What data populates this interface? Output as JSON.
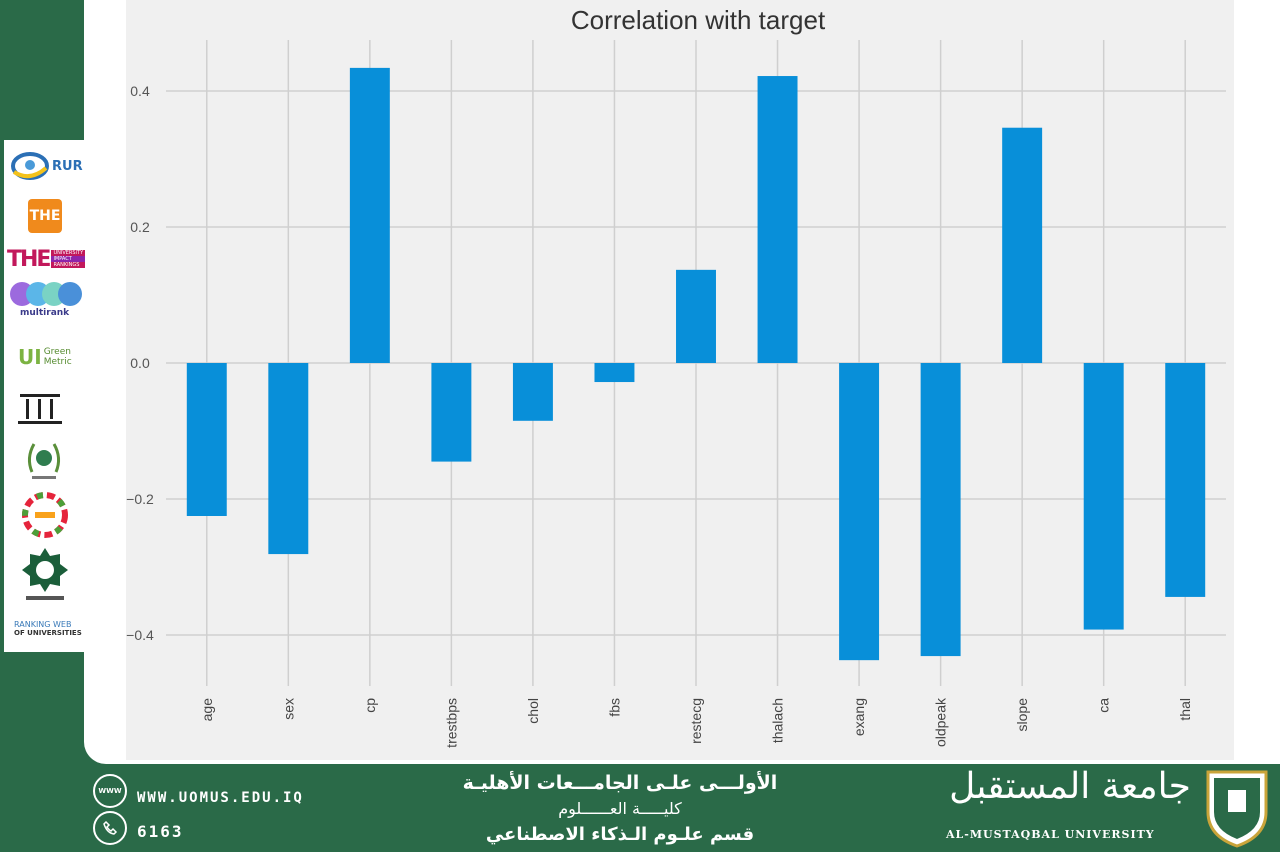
{
  "chart_data": {
    "type": "bar",
    "title": "Correlation with target",
    "xlabel": "",
    "ylabel": "",
    "categories": [
      "age",
      "sex",
      "cp",
      "trestbps",
      "chol",
      "fbs",
      "restecg",
      "thalach",
      "exang",
      "oldpeak",
      "slope",
      "ca",
      "thal"
    ],
    "values": [
      -0.225,
      -0.281,
      0.434,
      -0.145,
      -0.085,
      -0.028,
      0.137,
      0.422,
      -0.437,
      -0.431,
      0.346,
      -0.392,
      -0.344
    ],
    "ylim": [
      -0.475,
      0.475
    ],
    "yticks": [
      -0.4,
      -0.2,
      0.0,
      0.2,
      0.4
    ],
    "ytick_labels": [
      "−0.4",
      "−0.2",
      "0.0",
      "0.2",
      "0.4"
    ],
    "grid": true,
    "bar_color": "#088fd9",
    "plot_background": "#f0f0f0"
  },
  "sidebar": {
    "logos": [
      {
        "icon": "rur-logo",
        "text": "RUR"
      },
      {
        "icon": "the-logo",
        "text": "THE"
      },
      {
        "icon": "the-impact-logo",
        "text": "THE",
        "sub": [
          "UNIVERSITY",
          "IMPACT",
          "RANKINGS"
        ]
      },
      {
        "icon": "multirank-logo",
        "text": "multirank"
      },
      {
        "icon": "greenmetric-logo",
        "text": "UI",
        "sub": [
          "Green",
          "Metric"
        ]
      },
      {
        "icon": "institution-logo",
        "text": ""
      },
      {
        "icon": "arab-universities-logo",
        "text": ""
      },
      {
        "icon": "sdg-logo",
        "text": ""
      },
      {
        "icon": "arab-engineers-logo",
        "text": ""
      },
      {
        "icon": "webometrics-logo",
        "text": "RANKING WEB",
        "sub": [
          "OF UNIVERSITIES"
        ]
      }
    ]
  },
  "footer": {
    "website": "WWW.UOMUS.EDU.IQ",
    "website_icon_text": "WWW",
    "phone": "6163",
    "arabic_line1": "الأولـــى علـى الجامـــعات الأهليـة",
    "arabic_line2": "كليـــــة العــــــلوم",
    "arabic_line3": "قسم علـوم الـذكاء الاصطناعي",
    "university_arabic": "جامعة المستقبل",
    "university_english": "AL-MUSTAQBAL UNIVERSITY"
  },
  "colors": {
    "brand_green": "#2a6a48",
    "bar": "#088fd9"
  }
}
